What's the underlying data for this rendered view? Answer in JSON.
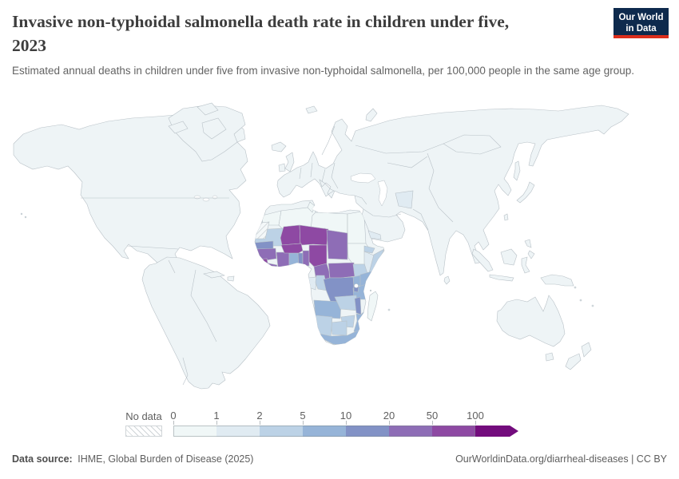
{
  "header": {
    "title_line1": "Invasive non-typhoidal salmonella death rate in children under five,",
    "title_line2": "2023",
    "subtitle": "Estimated annual deaths in children under five from invasive non-typhoidal salmonella, per 100,000 people in the same age group.",
    "logo": {
      "line1": "Our World",
      "line2": "in Data",
      "bg_color": "#0e2a4d",
      "accent_color": "#dc2e1c"
    }
  },
  "legend": {
    "no_data_label": "No data",
    "tick_labels": [
      "0",
      "1",
      "2",
      "5",
      "10",
      "20",
      "50",
      "100"
    ],
    "bins": [
      {
        "range": "0-1",
        "color": "#f0f7f7"
      },
      {
        "range": "1-2",
        "color": "#e0ebf2"
      },
      {
        "range": "2-5",
        "color": "#bcd2e6"
      },
      {
        "range": "5-10",
        "color": "#96b4d8"
      },
      {
        "range": "10-20",
        "color": "#8292c6"
      },
      {
        "range": "20-50",
        "color": "#8e6db6"
      },
      {
        "range": "50-100",
        "color": "#8e49a3"
      },
      {
        "range": "100+",
        "color": "#730c7d"
      }
    ]
  },
  "map": {
    "ocean_color": "#ffffff",
    "land_default_color": "#eef4f6",
    "border_color": "#b8c1c7"
  },
  "chart_data": {
    "type": "choropleth",
    "title": "Invasive non-typhoidal salmonella death rate in children under five, 2023",
    "unit": "estimated annual deaths per 100,000 people in the same age group",
    "year": "2023",
    "legend_bins": [
      "0-1",
      "1-2",
      "2-5",
      "5-10",
      "10-20",
      "20-50",
      "50-100",
      "100+"
    ],
    "default_bin_note": "All countries not listed below render in the lowest bin (0-1), including the Americas, Europe, most of Asia and Oceania.",
    "regions": [
      {
        "id": "morocco",
        "name": "Morocco",
        "bin": 0
      },
      {
        "id": "algeria",
        "name": "Algeria",
        "bin": 0
      },
      {
        "id": "tunisia",
        "name": "Tunisia",
        "bin": 0
      },
      {
        "id": "libya",
        "name": "Libya",
        "bin": 0
      },
      {
        "id": "egypt",
        "name": "Egypt",
        "bin": 0
      },
      {
        "id": "sudan",
        "name": "Sudan",
        "bin": 0
      },
      {
        "id": "madagascar",
        "name": "Madagascar",
        "bin": 0
      },
      {
        "id": "western-sahara",
        "name": "Western Sahara",
        "bin": "no-data"
      },
      {
        "id": "mauritania",
        "name": "Mauritania",
        "bin": 2
      },
      {
        "id": "senegal",
        "name": "Senegal",
        "bin": 4
      },
      {
        "id": "guinea",
        "name": "Guinea",
        "bin": 5
      },
      {
        "id": "sierra-leone",
        "name": "Sierra Leone",
        "bin": 6
      },
      {
        "id": "liberia",
        "name": "Liberia",
        "bin": 5
      },
      {
        "id": "cote-divoire",
        "name": "Cote d'Ivoire",
        "bin": 5
      },
      {
        "id": "ghana",
        "name": "Ghana",
        "bin": 3
      },
      {
        "id": "togo",
        "name": "Togo",
        "bin": 4
      },
      {
        "id": "benin",
        "name": "Benin",
        "bin": 5
      },
      {
        "id": "burkina-faso",
        "name": "Burkina Faso",
        "bin": 6
      },
      {
        "id": "mali",
        "name": "Mali",
        "bin": 6
      },
      {
        "id": "niger",
        "name": "Niger",
        "bin": 6
      },
      {
        "id": "nigeria",
        "name": "Nigeria",
        "bin": 6
      },
      {
        "id": "chad",
        "name": "Chad",
        "bin": 5
      },
      {
        "id": "cameroon",
        "name": "Cameroon",
        "bin": 5
      },
      {
        "id": "central-african-republic",
        "name": "Central African Republic",
        "bin": 5
      },
      {
        "id": "south-sudan",
        "name": "South Sudan",
        "bin": 2
      },
      {
        "id": "eritrea",
        "name": "Eritrea",
        "bin": 2
      },
      {
        "id": "ethiopia",
        "name": "Ethiopia",
        "bin": 1
      },
      {
        "id": "somalia",
        "name": "Somalia",
        "bin": 2
      },
      {
        "id": "kenya",
        "name": "Kenya",
        "bin": 3
      },
      {
        "id": "uganda",
        "name": "Uganda",
        "bin": 3
      },
      {
        "id": "rwanda-burundi",
        "name": "Rwanda and Burundi",
        "bin": 4
      },
      {
        "id": "dr-congo",
        "name": "Democratic Republic of Congo",
        "bin": 4
      },
      {
        "id": "congo",
        "name": "Congo",
        "bin": 2
      },
      {
        "id": "gabon",
        "name": "Gabon",
        "bin": 1
      },
      {
        "id": "tanzania",
        "name": "Tanzania",
        "bin": 3
      },
      {
        "id": "angola",
        "name": "Angola",
        "bin": 3
      },
      {
        "id": "zambia",
        "name": "Zambia",
        "bin": 2
      },
      {
        "id": "malawi",
        "name": "Malawi",
        "bin": 4
      },
      {
        "id": "mozambique",
        "name": "Mozambique",
        "bin": 3
      },
      {
        "id": "zimbabwe",
        "name": "Zimbabwe",
        "bin": 2
      },
      {
        "id": "botswana",
        "name": "Botswana",
        "bin": 2
      },
      {
        "id": "namibia",
        "name": "Namibia",
        "bin": 2
      },
      {
        "id": "south-africa",
        "name": "South Africa",
        "bin": 3
      },
      {
        "id": "afghanistan",
        "name": "Afghanistan",
        "bin": 1
      },
      {
        "id": "yemen",
        "name": "Yemen",
        "bin": 1
      }
    ]
  },
  "footer": {
    "source_label": "Data source:",
    "source_text": "IHME, Global Burden of Disease (2025)",
    "right_text": "OurWorldinData.org/diarrheal-diseases | CC BY"
  }
}
